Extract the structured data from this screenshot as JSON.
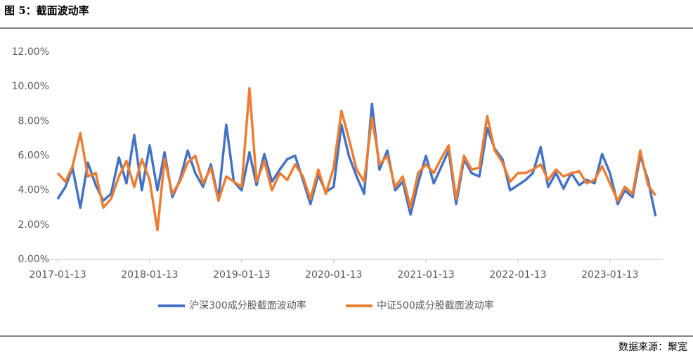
{
  "chart_data": {
    "type": "line",
    "title": "图 5：截面波动率",
    "source": "数据来源：聚宽",
    "x": [
      "2017-01-13",
      "2017-02-13",
      "2017-03-13",
      "2017-04-13",
      "2017-05-13",
      "2017-06-13",
      "2017-07-13",
      "2017-08-13",
      "2017-09-13",
      "2017-10-13",
      "2017-11-13",
      "2017-12-13",
      "2018-01-13",
      "2018-02-13",
      "2018-03-13",
      "2018-04-13",
      "2018-05-13",
      "2018-06-13",
      "2018-07-13",
      "2018-08-13",
      "2018-09-13",
      "2018-10-13",
      "2018-11-13",
      "2018-12-13",
      "2019-01-13",
      "2019-02-13",
      "2019-03-13",
      "2019-04-13",
      "2019-05-13",
      "2019-06-13",
      "2019-07-13",
      "2019-08-13",
      "2019-09-13",
      "2019-10-13",
      "2019-11-13",
      "2019-12-13",
      "2020-01-13",
      "2020-02-13",
      "2020-03-13",
      "2020-04-13",
      "2020-05-13",
      "2020-06-13",
      "2020-07-13",
      "2020-08-13",
      "2020-09-13",
      "2020-10-13",
      "2020-11-13",
      "2020-12-13",
      "2021-01-13",
      "2021-02-13",
      "2021-03-13",
      "2021-04-13",
      "2021-05-13",
      "2021-06-13",
      "2021-07-13",
      "2021-08-13",
      "2021-09-13",
      "2021-10-13",
      "2021-11-13",
      "2021-12-13",
      "2022-01-13",
      "2022-02-13",
      "2022-03-13",
      "2022-04-13",
      "2022-05-13",
      "2022-06-13",
      "2022-07-13",
      "2022-08-13",
      "2022-09-13",
      "2022-10-13",
      "2022-11-13",
      "2022-12-13",
      "2023-01-13",
      "2023-02-13",
      "2023-03-13",
      "2023-04-13",
      "2023-05-13",
      "2023-06-13",
      "2023-07-13"
    ],
    "series": [
      {
        "name": "沪深300成分股截面波动率",
        "color": "#4472c4",
        "values": [
          3.5,
          4.2,
          5.3,
          3.0,
          5.6,
          4.3,
          3.4,
          3.8,
          5.9,
          4.4,
          7.2,
          4.0,
          6.6,
          4.0,
          6.2,
          3.6,
          4.6,
          6.3,
          5.0,
          4.2,
          5.5,
          3.5,
          7.8,
          4.5,
          4.0,
          6.2,
          4.3,
          6.1,
          4.5,
          5.2,
          5.8,
          6.0,
          4.6,
          3.2,
          4.9,
          3.9,
          4.2,
          7.8,
          6.0,
          4.8,
          3.8,
          9.0,
          5.2,
          6.3,
          4.0,
          4.5,
          2.6,
          4.4,
          6.0,
          4.4,
          5.3,
          6.3,
          3.2,
          5.8,
          5.0,
          4.8,
          7.6,
          6.4,
          5.8,
          4.0,
          4.3,
          4.6,
          5.0,
          6.5,
          4.2,
          5.0,
          4.1,
          5.0,
          4.3,
          4.6,
          4.4,
          6.1,
          5.0,
          3.2,
          4.0,
          3.6,
          6.0,
          4.6,
          2.5
        ]
      },
      {
        "name": "中证500成分股截面波动率",
        "color": "#ed7d31",
        "values": [
          5.0,
          4.5,
          5.4,
          7.3,
          4.8,
          5.0,
          3.0,
          3.5,
          4.8,
          5.7,
          4.2,
          5.8,
          4.6,
          1.7,
          5.8,
          3.8,
          4.5,
          5.6,
          6.0,
          4.4,
          5.3,
          3.4,
          4.8,
          4.5,
          4.2,
          9.9,
          4.5,
          5.7,
          4.0,
          5.0,
          4.6,
          5.5,
          4.8,
          3.5,
          5.2,
          3.8,
          5.3,
          8.6,
          7.0,
          5.2,
          4.5,
          8.2,
          5.5,
          6.0,
          4.2,
          4.8,
          3.0,
          5.0,
          5.5,
          5.0,
          5.8,
          6.6,
          3.5,
          6.0,
          5.2,
          5.3,
          8.3,
          6.3,
          5.6,
          4.5,
          5.0,
          5.0,
          5.2,
          5.5,
          4.6,
          5.2,
          4.8,
          5.0,
          5.1,
          4.4,
          4.6,
          5.4,
          4.4,
          3.4,
          4.2,
          3.8,
          6.3,
          4.3,
          3.7
        ]
      }
    ],
    "xlim": [
      "2017-01-13",
      "2023-07-13"
    ],
    "xticks": [
      "2017-01-13",
      "2018-01-13",
      "2019-01-13",
      "2020-01-13",
      "2021-01-13",
      "2022-01-13",
      "2023-01-13"
    ],
    "ylim": [
      0,
      12
    ],
    "yticks": [
      {
        "value": 0,
        "label": "0.00%"
      },
      {
        "value": 2,
        "label": "2.00%"
      },
      {
        "value": 4,
        "label": "4.00%"
      },
      {
        "value": 6,
        "label": "6.00%"
      },
      {
        "value": 8,
        "label": "8.00%"
      },
      {
        "value": 10,
        "label": "10.00%"
      },
      {
        "value": 12,
        "label": "12.00%"
      }
    ],
    "grid": false,
    "legend": "bottom"
  }
}
